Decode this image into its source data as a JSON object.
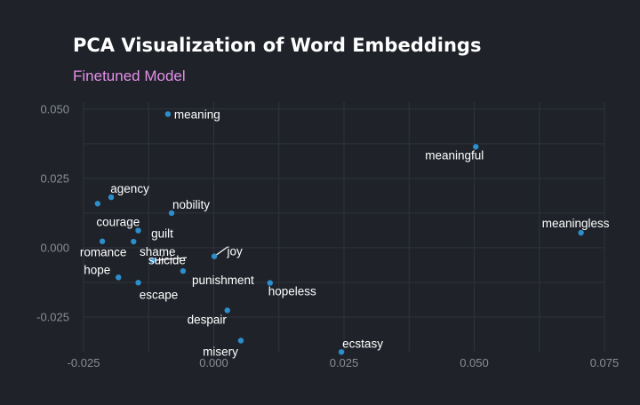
{
  "chart_data": {
    "type": "scatter",
    "title": "PCA Visualization of Word Embeddings",
    "subtitle": "Finetuned Model",
    "xlim": [
      -0.025,
      0.075
    ],
    "ylim": [
      -0.0375,
      0.0525
    ],
    "x_ticks": [
      -0.025,
      0.0,
      0.025,
      0.05,
      0.075
    ],
    "x_tick_labels": [
      "-0.025",
      "0.000",
      "0.025",
      "0.050",
      "0.075"
    ],
    "y_ticks": [
      -0.025,
      0.0,
      0.025,
      0.05
    ],
    "y_tick_labels": [
      "-0.025",
      "0.000",
      "0.025",
      "0.050"
    ],
    "grid": true,
    "point_color": "#2b8fcc",
    "background": "#1f2229",
    "points": [
      {
        "word": "meaning",
        "x": -0.0088,
        "y": 0.0482
      },
      {
        "word": "meaningful",
        "x": 0.0503,
        "y": 0.0364
      },
      {
        "word": "meaningless",
        "x": 0.0705,
        "y": 0.0054
      },
      {
        "word": "agency",
        "x": -0.0197,
        "y": 0.0182
      },
      {
        "word": "courage",
        "x": -0.0223,
        "y": 0.0159
      },
      {
        "word": "nobility",
        "x": -0.0081,
        "y": 0.0125
      },
      {
        "word": "guilt",
        "x": -0.0145,
        "y": 0.0062
      },
      {
        "word": "romance",
        "x": -0.0214,
        "y": 0.0023
      },
      {
        "word": "shame",
        "x": -0.0154,
        "y": 0.0022
      },
      {
        "word": "joy",
        "x": 0.0001,
        "y": -0.0031
      },
      {
        "word": "suicide",
        "x": -0.0117,
        "y": -0.0046
      },
      {
        "word": "punishment",
        "x": -0.0059,
        "y": -0.0084
      },
      {
        "word": "hope",
        "x": -0.0183,
        "y": -0.0107
      },
      {
        "word": "escape",
        "x": -0.0145,
        "y": -0.0126
      },
      {
        "word": "hopeless",
        "x": 0.0108,
        "y": -0.0127
      },
      {
        "word": "despair",
        "x": 0.0026,
        "y": -0.0226
      },
      {
        "word": "misery",
        "x": 0.0052,
        "y": -0.0335
      },
      {
        "word": "ecstasy",
        "x": 0.0245,
        "y": -0.0376
      }
    ]
  }
}
